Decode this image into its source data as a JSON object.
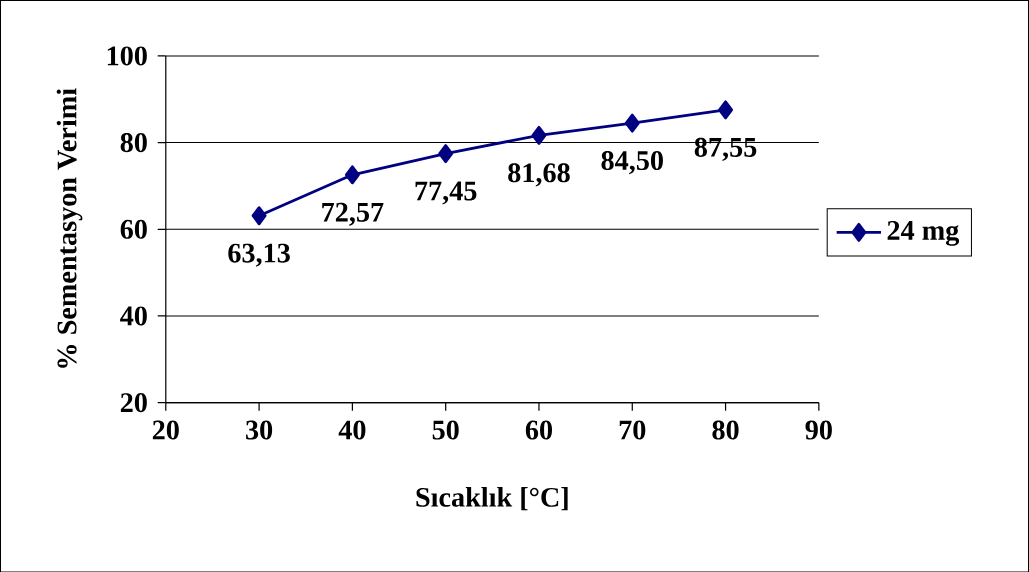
{
  "chart_data": {
    "type": "line",
    "xlabel": "Sıcaklık [°C]",
    "ylabel": "% Sementasyon Verimi",
    "x": [
      30,
      40,
      50,
      60,
      70,
      80
    ],
    "series": [
      {
        "name": "24 mg",
        "color": "#000080",
        "values": [
          63.13,
          72.57,
          77.45,
          81.68,
          84.5,
          87.55
        ],
        "value_labels": [
          "63,13",
          "72,57",
          "77,45",
          "81,68",
          "84,50",
          "87,55"
        ]
      }
    ],
    "xlim": [
      20,
      90
    ],
    "ylim": [
      20,
      100
    ],
    "xticks": [
      20,
      30,
      40,
      50,
      60,
      70,
      80,
      90
    ],
    "yticks": [
      20,
      40,
      60,
      80,
      100
    ],
    "grid": "y",
    "legend": "right",
    "marker": "diamond",
    "line_style": "solid"
  }
}
